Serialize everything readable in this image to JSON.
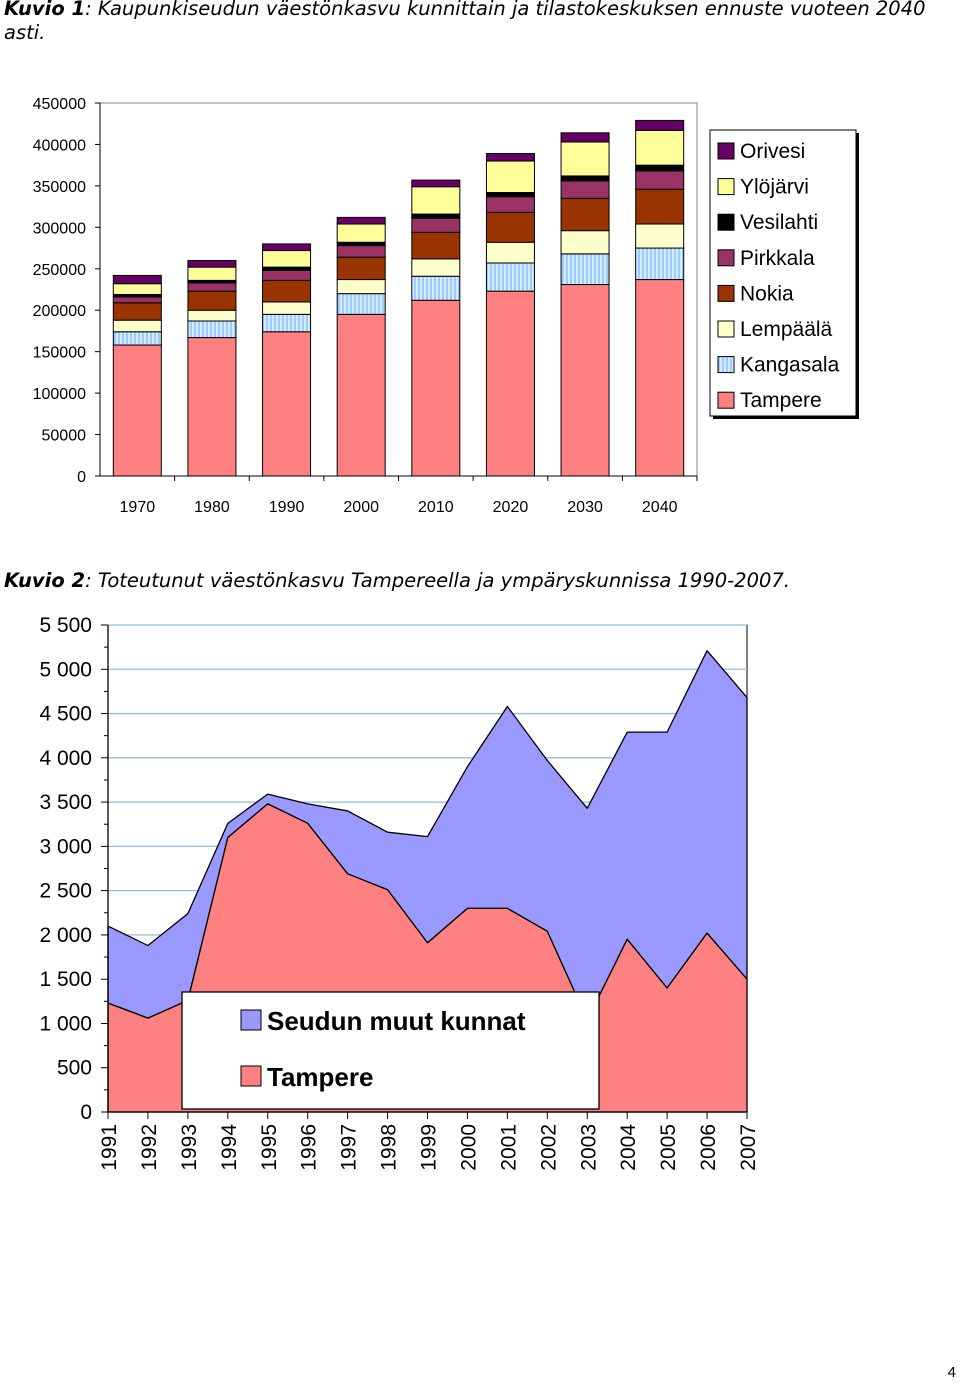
{
  "captions": {
    "chart1_prefix": "Kuvio 1",
    "chart1_text": ": Kaupunkiseudun väestönkasvu kunnittain ja tilastokeskuksen ennuste vuoteen 2040 asti.",
    "chart2_prefix": "Kuvio 2",
    "chart2_text": ": Toteutunut väestönkasvu Tampereella ja ympäryskunnissa 1990-2007."
  },
  "page_number": "4",
  "chart_data": [
    {
      "type": "bar",
      "stacked": true,
      "title": "",
      "xlabel": "",
      "ylabel": "",
      "ylim": [
        0,
        450000
      ],
      "yticks": [
        0,
        50000,
        100000,
        150000,
        200000,
        250000,
        300000,
        350000,
        400000,
        450000
      ],
      "ytick_labels": [
        "0",
        "50000",
        "100000",
        "150000",
        "200000",
        "250000",
        "300000",
        "350000",
        "400000",
        "450000"
      ],
      "categories": [
        "1970",
        "1980",
        "1990",
        "2000",
        "2010",
        "2020",
        "2030",
        "2040"
      ],
      "grid": false,
      "legend_position": "right",
      "series": [
        {
          "name": "Tampere",
          "color": "#ff8080",
          "pattern": "none",
          "values": [
            158000,
            167000,
            174000,
            195000,
            212000,
            223000,
            231000,
            237000
          ]
        },
        {
          "name": "Kangasala",
          "color": "#99ccff",
          "pattern": "vertical-lines",
          "values": [
            16000,
            20000,
            21000,
            25000,
            29000,
            34000,
            37000,
            38000
          ]
        },
        {
          "name": "Lempäälä",
          "color": "#ffffcc",
          "pattern": "none",
          "values": [
            14000,
            13000,
            15000,
            17000,
            21000,
            25000,
            28000,
            29000
          ]
        },
        {
          "name": "Nokia",
          "color": "#993300",
          "pattern": "none",
          "values": [
            21000,
            23000,
            26000,
            27000,
            32000,
            36000,
            39000,
            42000
          ]
        },
        {
          "name": "Pirkkala",
          "color": "#993366",
          "pattern": "none",
          "values": [
            7000,
            10000,
            12000,
            14000,
            17000,
            19000,
            21000,
            22000
          ]
        },
        {
          "name": "Vesilahti",
          "color": "#000000",
          "pattern": "none",
          "values": [
            3000,
            3000,
            4000,
            4000,
            5000,
            5000,
            6000,
            7000
          ]
        },
        {
          "name": "Ylöjärvi",
          "color": "#ffff99",
          "pattern": "none",
          "values": [
            13000,
            16000,
            20000,
            22000,
            33000,
            38000,
            41000,
            42000
          ]
        },
        {
          "name": "Orivesi",
          "color": "#660066",
          "pattern": "none",
          "values": [
            10000,
            8000,
            8000,
            8000,
            8000,
            9000,
            11000,
            12000
          ]
        }
      ],
      "legend_order": [
        "Orivesi",
        "Ylöjärvi",
        "Vesilahti",
        "Pirkkala",
        "Nokia",
        "Lempäälä",
        "Kangasala",
        "Tampere"
      ]
    },
    {
      "type": "area",
      "stacked": true,
      "title": "",
      "xlabel": "",
      "ylabel": "",
      "ylim": [
        0,
        5500
      ],
      "yticks": [
        0,
        500,
        1000,
        1500,
        2000,
        2500,
        3000,
        3500,
        4000,
        4500,
        5000,
        5500
      ],
      "ytick_labels": [
        "0",
        "500",
        "1 000",
        "1 500",
        "2 000",
        "2 500",
        "3 000",
        "3 500",
        "4 000",
        "4 500",
        "5 000",
        "5 500"
      ],
      "x": [
        "1991",
        "1992",
        "1993",
        "1994",
        "1995",
        "1996",
        "1997",
        "1998",
        "1999",
        "2000",
        "2001",
        "2002",
        "2003",
        "2004",
        "2005",
        "2006",
        "2007"
      ],
      "grid": true,
      "legend_position": "bottom-left inside",
      "series": [
        {
          "name": "Tampere",
          "color": "#ff8080",
          "values": [
            1230,
            1060,
            1260,
            3100,
            3480,
            3260,
            2690,
            2510,
            1910,
            2300,
            2300,
            2040,
            1040,
            1950,
            1400,
            2020,
            1500
          ]
        },
        {
          "name": "Seudun muut kunnat",
          "color": "#9999ff",
          "values": [
            870,
            820,
            980,
            160,
            110,
            220,
            710,
            650,
            1200,
            1600,
            2280,
            1930,
            2390,
            2340,
            2890,
            3190,
            3180
          ]
        }
      ],
      "legend_order": [
        "Seudun muut kunnat",
        "Tampere"
      ]
    }
  ]
}
